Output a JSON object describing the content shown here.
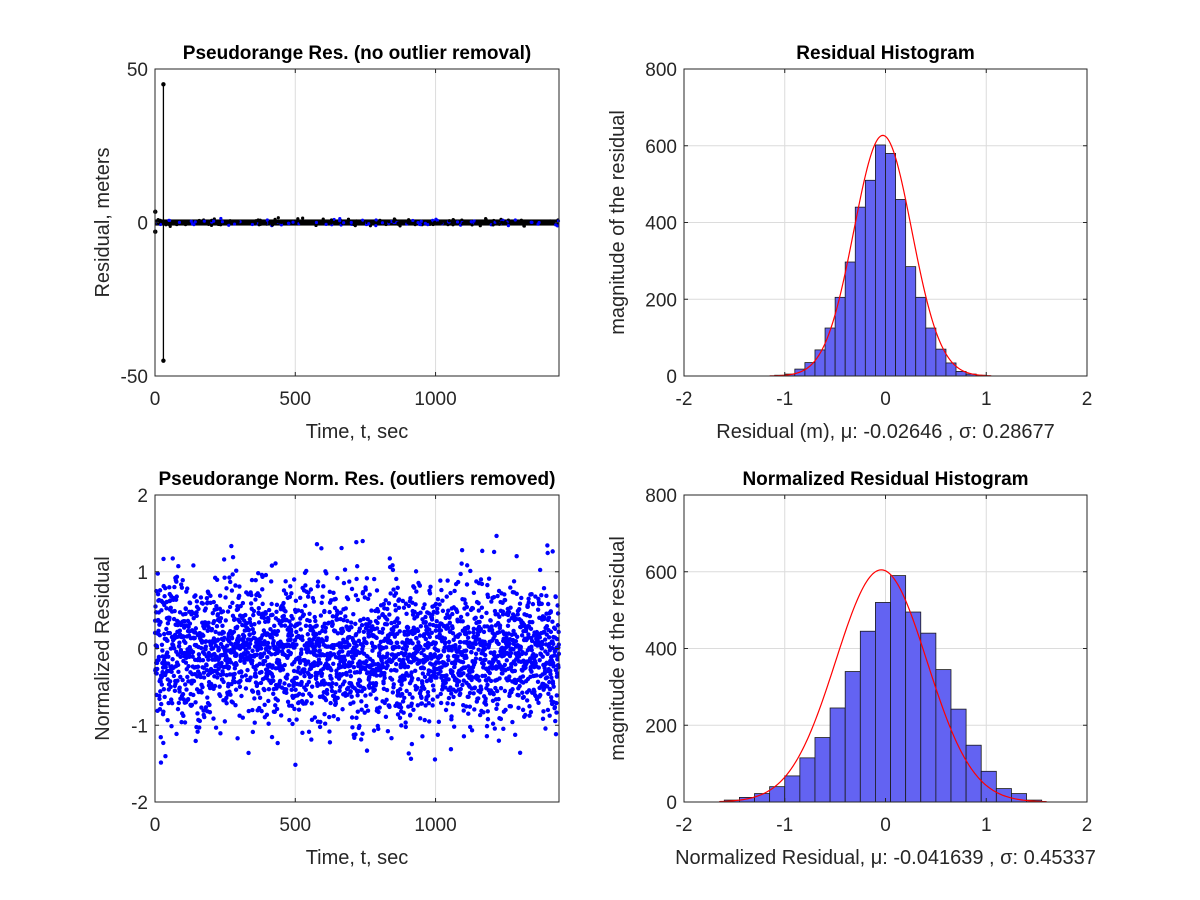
{
  "chart_data": [
    {
      "id": "top-left",
      "type": "scatter",
      "title": "Pseudorange Res. (no outlier removal)",
      "xlabel": "Time, t, sec",
      "ylabel": "Residual, meters",
      "xlim": [
        0,
        1440
      ],
      "ylim": [
        -50,
        50
      ],
      "xticks": [
        0,
        500,
        1000
      ],
      "yticks": [
        -50,
        0,
        50
      ],
      "xtick_labels": [
        "0",
        "500",
        "1000"
      ],
      "ytick_labels": [
        "-50",
        "0",
        "50"
      ],
      "grid": true,
      "marker_color": "#0000ff",
      "outlier_color": "#000000",
      "baseline_band": {
        "t_start": 0,
        "t_end": 1440,
        "residual_min": -1,
        "residual_max": 1
      },
      "outliers": [
        {
          "t": 30,
          "residual": 45
        },
        {
          "t": 30,
          "residual": -45
        },
        {
          "t": 1,
          "residual": 3.5
        },
        {
          "t": 1,
          "residual": -3
        }
      ]
    },
    {
      "id": "top-right",
      "type": "bar",
      "title": "Residual Histogram",
      "xlabel": "Residual (m), μ: -0.02646 , σ: 0.28677",
      "ylabel": "magnitude of the residual",
      "xlim": [
        -2,
        2
      ],
      "ylim": [
        0,
        800
      ],
      "xticks": [
        -2,
        -1,
        0,
        1,
        2
      ],
      "yticks": [
        0,
        200,
        400,
        600,
        800
      ],
      "xtick_labels": [
        "-2",
        "-1",
        "0",
        "1",
        "2"
      ],
      "ytick_labels": [
        "0",
        "200",
        "400",
        "600",
        "800"
      ],
      "grid": true,
      "bar_color": "#6363f2",
      "curve_color": "#ff0000",
      "mu": -0.02646,
      "sigma": 0.28677,
      "curve_peak": 627,
      "bin_edges": [
        -1.1,
        -1.0,
        -0.9,
        -0.8,
        -0.7,
        -0.6,
        -0.5,
        -0.4,
        -0.3,
        -0.2,
        -0.1,
        0.0,
        0.1,
        0.2,
        0.3,
        0.4,
        0.5,
        0.6,
        0.7,
        0.8,
        0.9,
        1.0
      ],
      "counts": [
        2,
        5,
        18,
        35,
        68,
        125,
        205,
        297,
        440,
        510,
        602,
        580,
        460,
        285,
        205,
        125,
        70,
        34,
        12,
        5,
        2
      ]
    },
    {
      "id": "bottom-left",
      "type": "scatter",
      "title": "Pseudorange Norm. Res. (outliers removed)",
      "xlabel": "Time, t, sec",
      "ylabel": "Normalized Residual",
      "xlim": [
        0,
        1440
      ],
      "ylim": [
        -2,
        2
      ],
      "xticks": [
        0,
        500,
        1000
      ],
      "yticks": [
        -2,
        -1,
        0,
        1,
        2
      ],
      "xtick_labels": [
        "0",
        "500",
        "1000"
      ],
      "ytick_labels": [
        "-2",
        "-1",
        "0",
        "1",
        "2"
      ],
      "grid": true,
      "marker_color": "#0000ff",
      "point_count": 2800,
      "mu": -0.041639,
      "sigma": 0.45337
    },
    {
      "id": "bottom-right",
      "type": "bar",
      "title": "Normalized Residual Histogram",
      "xlabel": "Normalized Residual, μ: -0.041639 , σ: 0.45337",
      "ylabel": "magnitude of the residual",
      "xlim": [
        -2,
        2
      ],
      "ylim": [
        0,
        800
      ],
      "xticks": [
        -2,
        -1,
        0,
        1,
        2
      ],
      "yticks": [
        0,
        200,
        400,
        600,
        800
      ],
      "xtick_labels": [
        "-2",
        "-1",
        "0",
        "1",
        "2"
      ],
      "ytick_labels": [
        "0",
        "200",
        "400",
        "600",
        "800"
      ],
      "grid": true,
      "bar_color": "#6363f2",
      "curve_color": "#ff0000",
      "mu": -0.041639,
      "sigma": 0.45337,
      "curve_peak": 605,
      "bin_edges": [
        -1.6,
        -1.45,
        -1.3,
        -1.15,
        -1.0,
        -0.85,
        -0.7,
        -0.55,
        -0.4,
        -0.25,
        -0.1,
        0.05,
        0.2,
        0.35,
        0.5,
        0.65,
        0.8,
        0.95,
        1.1,
        1.25,
        1.4,
        1.55
      ],
      "counts": [
        5,
        12,
        22,
        40,
        68,
        115,
        168,
        245,
        340,
        445,
        520,
        590,
        495,
        440,
        345,
        242,
        148,
        80,
        35,
        22,
        5
      ]
    }
  ]
}
